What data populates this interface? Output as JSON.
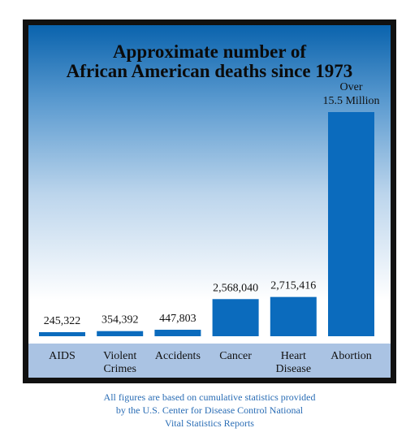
{
  "chart_data": {
    "type": "bar",
    "title_lines": [
      "Approximate number of",
      "African American deaths since 1973"
    ],
    "categories": [
      [
        "AIDS"
      ],
      [
        "Violent",
        "Crimes"
      ],
      [
        "Accidents"
      ],
      [
        "Cancer"
      ],
      [
        "Heart",
        "Disease"
      ],
      [
        "Abortion"
      ]
    ],
    "values": [
      245322,
      354392,
      447803,
      2568040,
      2715416,
      15500000
    ],
    "data_labels": [
      [
        "245,322"
      ],
      [
        "354,392"
      ],
      [
        "447,803"
      ],
      [
        "2,568,040"
      ],
      [
        "2,715,416"
      ],
      [
        "Over",
        "15.5 Million"
      ]
    ],
    "ylim": [
      0,
      15500000
    ],
    "bar_color": "#0b6bbd",
    "grid": false,
    "legend": "none"
  },
  "footnote_lines": [
    "All figures are based on cumulative statistics provided",
    "by the U.S. Center for Disease Control National",
    "Vital Statistics Reports"
  ],
  "colors": {
    "frame": "#111111",
    "gradient_top": "#0a63ad",
    "axis_band": "#aac3e3",
    "footnote": "#2a6db5"
  }
}
